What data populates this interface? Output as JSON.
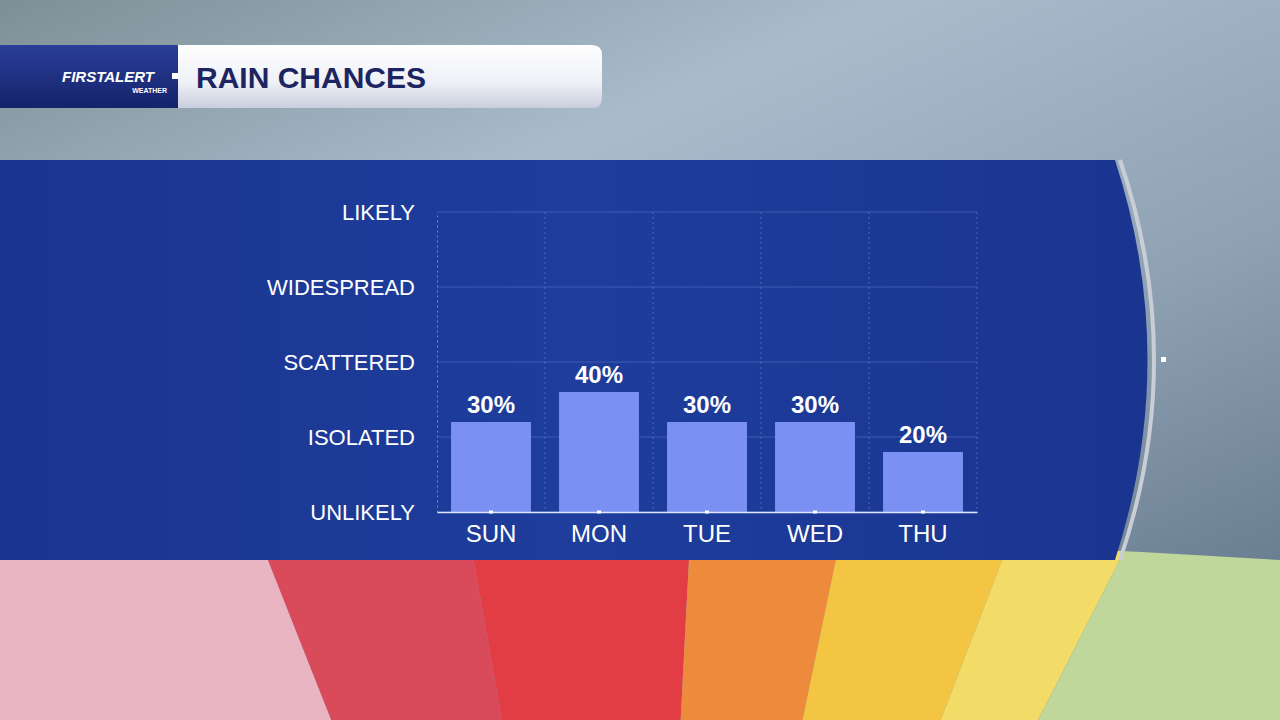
{
  "chart_data": {
    "type": "bar",
    "title": "RAIN CHANCES",
    "annotations": [
      "FIRSTALERT",
      "WEATHER"
    ],
    "categories": [
      "SUN",
      "MON",
      "TUE",
      "WED",
      "THU"
    ],
    "values": [
      30,
      40,
      30,
      30,
      20
    ],
    "value_labels": [
      "30%",
      "40%",
      "30%",
      "30%",
      "20%"
    ],
    "data_labels": true,
    "color": "#7a91f3",
    "ylim": [
      0,
      100
    ],
    "yticks": [
      {
        "value": 0,
        "label": "UNLIKELY"
      },
      {
        "value": 25,
        "label": "ISOLATED"
      },
      {
        "value": 50,
        "label": "SCATTERED"
      },
      {
        "value": 75,
        "label": "WIDESPREAD"
      },
      {
        "value": 100,
        "label": "LIKELY"
      }
    ],
    "grid": true
  }
}
